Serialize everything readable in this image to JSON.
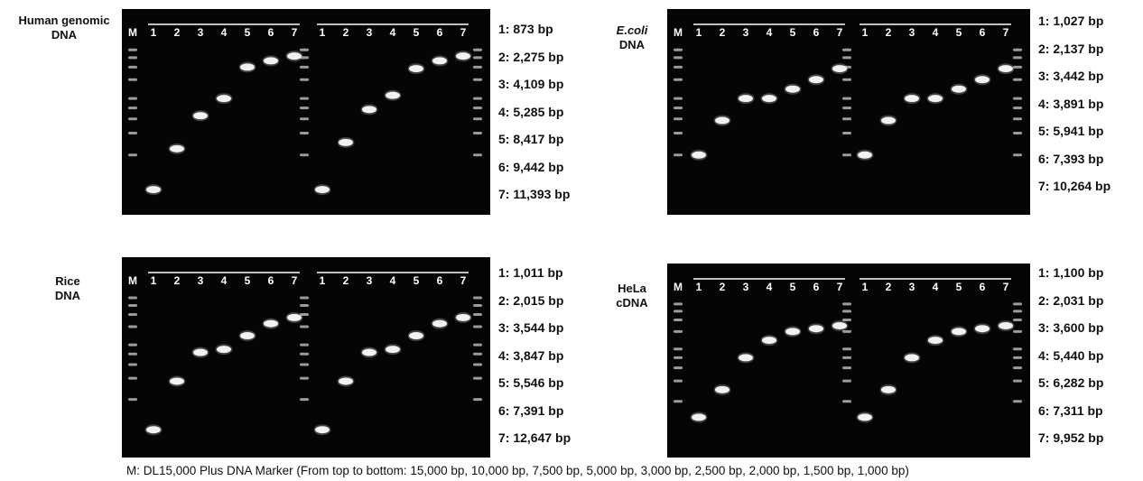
{
  "figure": {
    "panels": [
      {
        "id": "human",
        "sample_label": [
          "Human genomic",
          "DNA"
        ],
        "label_italic": false,
        "lane_labels": [
          "M",
          "1",
          "2",
          "3",
          "4",
          "5",
          "6",
          "7",
          "1",
          "2",
          "3",
          "4",
          "5",
          "6",
          "7"
        ],
        "sizes": [
          "1: 873 bp",
          "2: 2,275 bp",
          "3: 4,109 bp",
          "4: 5,285 bp",
          "5: 8,417 bp",
          "6: 9,442 bp",
          "7: 11,393 bp"
        ],
        "band_levels_set1": [
          0.08,
          0.34,
          0.55,
          0.66,
          0.86,
          0.9,
          0.93
        ],
        "band_levels_set2": [
          0.08,
          0.38,
          0.59,
          0.68,
          0.85,
          0.9,
          0.93
        ]
      },
      {
        "id": "ecoli",
        "sample_label": [
          "E.coli",
          "DNA"
        ],
        "label_italic": true,
        "lane_labels": [
          "M",
          "1",
          "2",
          "3",
          "4",
          "5",
          "6",
          "7",
          "1",
          "2",
          "3",
          "4",
          "5",
          "6",
          "7"
        ],
        "sizes": [
          "1: 1,027 bp",
          "2: 2,137 bp",
          "3: 3,442 bp",
          "4: 3,891 bp",
          "5: 5,941 bp",
          "6: 7,393 bp",
          "7: 10,264 bp"
        ],
        "band_levels_set1": [
          0.3,
          0.52,
          0.66,
          0.66,
          0.72,
          0.78,
          0.85
        ],
        "band_levels_set2": [
          0.3,
          0.52,
          0.66,
          0.66,
          0.72,
          0.78,
          0.85
        ]
      },
      {
        "id": "rice",
        "sample_label": [
          "Rice",
          "DNA"
        ],
        "label_italic": false,
        "lane_labels": [
          "M",
          "1",
          "2",
          "3",
          "4",
          "5",
          "6",
          "7",
          "1",
          "2",
          "3",
          "4",
          "5",
          "6",
          "7"
        ],
        "sizes": [
          "1: 1,011 bp",
          "2: 2,015 bp",
          "3: 3,544 bp",
          "4: 3,847 bp",
          "5: 5,546 bp",
          "6: 7,391 bp",
          "7: 12,647 bp"
        ],
        "band_levels_set1": [
          0.1,
          0.42,
          0.61,
          0.63,
          0.72,
          0.8,
          0.84
        ],
        "band_levels_set2": [
          0.1,
          0.42,
          0.61,
          0.63,
          0.72,
          0.8,
          0.84
        ]
      },
      {
        "id": "hela",
        "sample_label": [
          "HeLa",
          "cDNA"
        ],
        "label_italic": false,
        "lane_labels": [
          "M",
          "1",
          "2",
          "3",
          "4",
          "5",
          "6",
          "7",
          "1",
          "2",
          "3",
          "4",
          "5",
          "6",
          "7"
        ],
        "sizes": [
          "1: 1,100 bp",
          "2: 2,031 bp",
          "3: 3,600 bp",
          "4: 5,440 bp",
          "5: 6,282 bp",
          "6: 7,311 bp",
          "7: 9,952 bp"
        ],
        "band_levels_set1": [
          0.19,
          0.38,
          0.6,
          0.72,
          0.78,
          0.8,
          0.82
        ],
        "band_levels_set2": [
          0.19,
          0.38,
          0.6,
          0.72,
          0.78,
          0.8,
          0.82
        ]
      }
    ],
    "marker_levels": [
      0.97,
      0.92,
      0.86,
      0.78,
      0.66,
      0.6,
      0.53,
      0.44,
      0.3
    ],
    "footer": "M: DL15,000 Plus DNA Marker (From top to bottom: 15,000 bp, 10,000 bp, 7,500 bp, 5,000 bp, 3,000 bp, 2,500 bp, 2,000 bp, 1,500 bp, 1,000 bp)"
  }
}
